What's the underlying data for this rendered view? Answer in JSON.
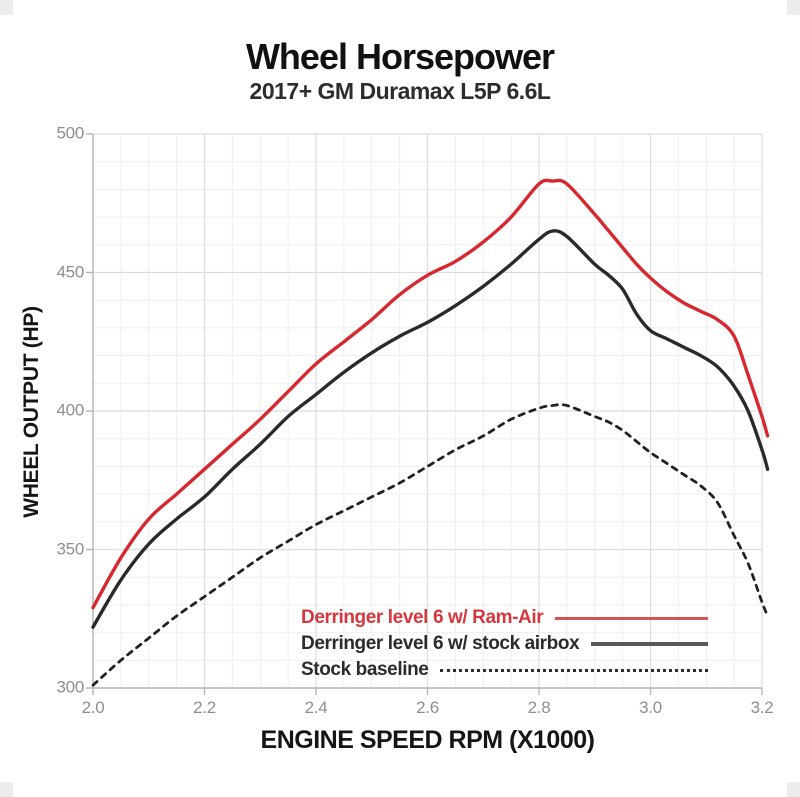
{
  "page": {
    "title": "Wheel Horsepower",
    "subtitle": "2017+ GM Duramax L5P 6.6L"
  },
  "chart_data": {
    "type": "line",
    "title": "Wheel Horsepower",
    "subtitle": "2017+ GM Duramax L5P 6.6L",
    "xlabel": "ENGINE SPEED RPM (X1000)",
    "ylabel": "WHEEL OUTPUT (HP)",
    "xlim": [
      2.0,
      3.2
    ],
    "ylim": [
      300,
      500
    ],
    "x_ticks": [
      2.0,
      2.2,
      2.4,
      2.6,
      2.8,
      3.0,
      3.2
    ],
    "x_tick_labels": [
      "2.0",
      "2.2",
      "2.4",
      "2.6",
      "2.8",
      "3.0",
      "3.2"
    ],
    "y_ticks": [
      300,
      350,
      400,
      450,
      500
    ],
    "y_tick_labels": [
      "300",
      "350",
      "400",
      "450",
      "500"
    ],
    "x_minor_step": 0.05,
    "y_minor_step": 10,
    "grid": "major+minor",
    "legend_position": "inside-bottom-right",
    "x": [
      2.0,
      2.05,
      2.1,
      2.15,
      2.2,
      2.25,
      2.3,
      2.35,
      2.4,
      2.45,
      2.5,
      2.55,
      2.6,
      2.65,
      2.7,
      2.75,
      2.8,
      2.825,
      2.85,
      2.9,
      2.925,
      2.95,
      2.975,
      3.0,
      3.03,
      3.06,
      3.09,
      3.12,
      3.15,
      3.175,
      3.2,
      3.21
    ],
    "series": [
      {
        "name": "Derringer level 6 w/ Ram-Air",
        "style": "solid",
        "color": "#d7282f",
        "legend_line_color": "#d25459",
        "values": [
          329,
          347,
          361,
          370,
          379,
          388,
          397,
          407,
          417,
          425,
          433,
          442,
          449,
          454,
          461,
          470,
          482,
          483,
          482,
          471,
          465,
          459,
          453,
          448,
          443,
          439,
          436,
          433,
          427,
          413,
          398,
          391
        ]
      },
      {
        "name": "Derringer level 6 w/ stock airbox",
        "style": "solid",
        "color": "#2a2a2a",
        "legend_line_color": "#58595b",
        "values": [
          322,
          339,
          352,
          361,
          369,
          379,
          388,
          398,
          406,
          414,
          421,
          427,
          432,
          438,
          445,
          453,
          462,
          465,
          463,
          453,
          449,
          444,
          435,
          429,
          426,
          423,
          420,
          416,
          409,
          400,
          386,
          379
        ]
      },
      {
        "name": "Stock baseline",
        "style": "dotted",
        "color": "#222222",
        "legend_line_color": "#2e2e2e",
        "values": [
          301,
          310,
          318,
          326,
          333,
          340,
          347,
          353,
          359,
          364,
          369,
          374,
          380,
          386,
          391,
          397,
          401,
          402,
          402,
          398,
          396,
          393,
          389,
          385,
          381,
          377,
          373,
          367,
          355,
          345,
          331,
          326
        ]
      }
    ]
  },
  "colors": {
    "grid_minor": "#efefef",
    "grid_major": "#dcdcdc",
    "axis_line": "#b5b5b5",
    "tick_label": "#8e8e8e",
    "accent_red": "#d7282f"
  }
}
